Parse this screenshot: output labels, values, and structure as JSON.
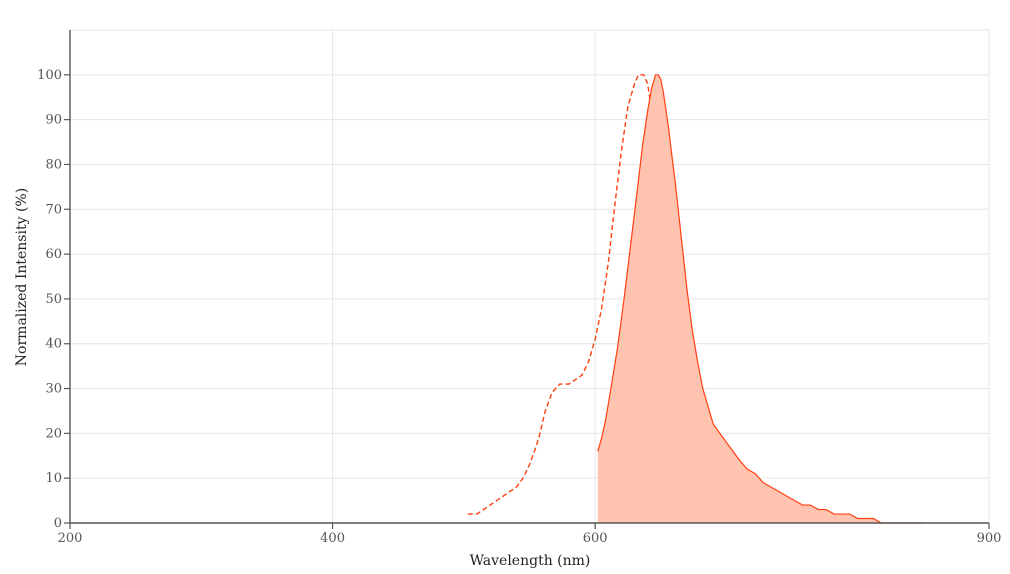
{
  "chart_data": {
    "type": "area",
    "xlabel": "Wavelength (nm)",
    "ylabel": "Normalized Intensity (%)",
    "xlim": [
      200,
      900
    ],
    "ylim": [
      0,
      110
    ],
    "xticks": [
      200,
      400,
      600,
      900
    ],
    "yticks": [
      0,
      10,
      20,
      30,
      40,
      50,
      60,
      70,
      80,
      90,
      100
    ],
    "grid": true,
    "legend": "none",
    "series": [
      {
        "style": "dashed",
        "color": "#ff4010",
        "x": [
          503,
          510,
          515,
          520,
          525,
          530,
          535,
          540,
          545,
          550,
          555,
          558,
          562,
          567,
          573,
          580,
          585,
          590,
          595,
          600,
          605,
          610,
          615,
          620,
          625,
          630,
          633,
          637,
          640,
          643,
          646,
          650,
          655,
          658,
          661,
          663,
          665,
          667,
          669,
          670
        ],
        "y": [
          2,
          2,
          3,
          4,
          5,
          6,
          7,
          8,
          10,
          13,
          17,
          20,
          25,
          29,
          31,
          31,
          32,
          33,
          36,
          41,
          48,
          58,
          71,
          83,
          93,
          98,
          100,
          100,
          98,
          92,
          82,
          68,
          48,
          38,
          30,
          22,
          15,
          10,
          5,
          0
        ]
      },
      {
        "style": "solid-filled",
        "color": "#ff4010",
        "fill": "#ffc3b0",
        "x": [
          602,
          605,
          608,
          612,
          617,
          622,
          627,
          632,
          636,
          640,
          643,
          646,
          648,
          650,
          652,
          654,
          656,
          658,
          661,
          664,
          667,
          670,
          674,
          678,
          682,
          686,
          690,
          695,
          700,
          705,
          710,
          716,
          722,
          728,
          734,
          740,
          746,
          752,
          758,
          764,
          770,
          776,
          782,
          788,
          794,
          800,
          806,
          812,
          818,
          824,
          830,
          836,
          840,
          845,
          848,
          850
        ],
        "y": [
          16,
          19,
          23,
          30,
          39,
          50,
          62,
          74,
          84,
          92,
          97,
          100,
          100,
          99,
          96,
          92,
          88,
          83,
          76,
          68,
          60,
          52,
          43,
          36,
          30,
          26,
          22,
          20,
          18,
          16,
          14,
          12,
          11,
          9,
          8,
          7,
          6,
          5,
          4,
          4,
          3,
          3,
          2,
          2,
          2,
          1,
          1,
          1,
          0,
          0,
          0,
          0,
          0,
          0,
          0,
          0
        ]
      }
    ]
  }
}
